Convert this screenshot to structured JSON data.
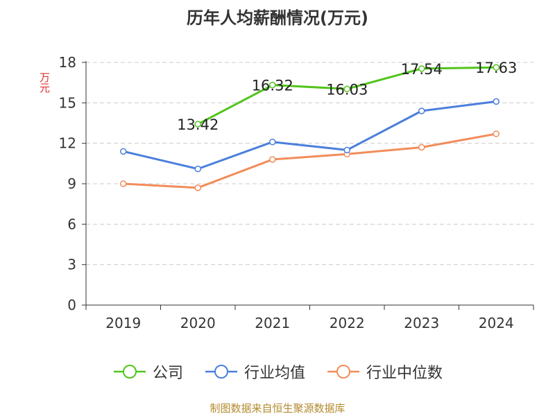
{
  "chart_data": {
    "type": "line",
    "title": "历年人均薪酬情况(万元)",
    "ylabel": "万元",
    "xlabel": "",
    "categories": [
      "2019",
      "2020",
      "2021",
      "2022",
      "2023",
      "2024"
    ],
    "ylim": [
      0,
      18
    ],
    "yticks": [
      0,
      3,
      6,
      9,
      12,
      15,
      18
    ],
    "grid": "horizontal-dashed",
    "legend_position": "bottom",
    "series": [
      {
        "name": "公司",
        "color": "#52c41a",
        "values": [
          null,
          13.42,
          16.32,
          16.03,
          17.54,
          17.63
        ],
        "labels": [
          "",
          "13.42",
          "16.32",
          "16.03",
          "17.54",
          "17.63"
        ]
      },
      {
        "name": "行业均值",
        "color": "#4a7fdb",
        "values": [
          11.4,
          10.1,
          12.1,
          11.5,
          14.4,
          15.1
        ]
      },
      {
        "name": "行业中位数",
        "color": "#f28c5a",
        "values": [
          9.0,
          8.7,
          10.8,
          11.2,
          11.7,
          12.7
        ]
      }
    ]
  },
  "source": "制图数据来自恒生聚源数据库"
}
